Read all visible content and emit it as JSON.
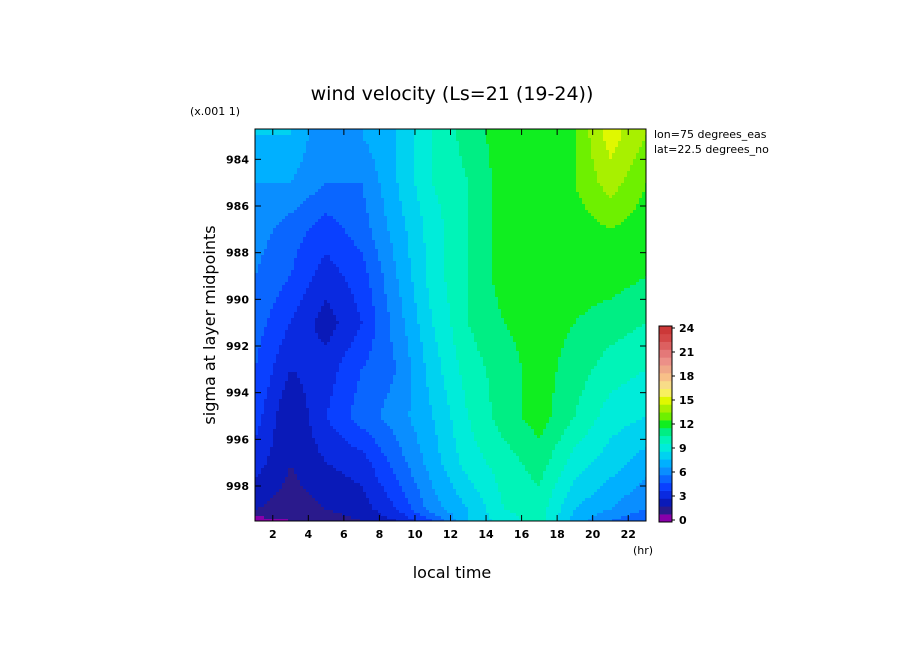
{
  "chart_data": {
    "type": "heatmap",
    "subtype": "filled-contour",
    "title": "wind velocity (Ls=21 (19-24))",
    "xlabel": "local time",
    "ylabel": "sigma at layer midpoints",
    "x_unit": "(hr)",
    "y_scale_note": "(x.001 1)",
    "annotations": [
      "lon=75 degrees_eas",
      "lat=22.5 degrees_no"
    ],
    "xlim": [
      1,
      23
    ],
    "ylim": [
      999.5,
      982.7
    ],
    "x_ticks": [
      "2",
      "4",
      "6",
      "8",
      "10",
      "12",
      "14",
      "16",
      "18",
      "20",
      "22"
    ],
    "y_ticks": [
      "984",
      "986",
      "988",
      "990",
      "992",
      "994",
      "996",
      "998"
    ],
    "x": [
      1,
      3,
      5,
      7,
      9,
      11,
      13,
      15,
      17,
      19,
      21,
      23
    ],
    "y": [
      983,
      985,
      987,
      989,
      991,
      993,
      995,
      997,
      999,
      999.5
    ],
    "z": [
      [
        8,
        8,
        6,
        7,
        8,
        10,
        11.5,
        12.5,
        12.5,
        13,
        15.5,
        14
      ],
      [
        7,
        7,
        6,
        6,
        8,
        10,
        11,
        12.5,
        12.5,
        13,
        14.5,
        13
      ],
      [
        6.5,
        5.5,
        4.5,
        5.5,
        7.5,
        9.5,
        11,
        12.5,
        12.5,
        12.5,
        13,
        12.5
      ],
      [
        6,
        5,
        3.5,
        4.5,
        7,
        9.5,
        11,
        12.5,
        12.5,
        12.5,
        12.5,
        12
      ],
      [
        5.5,
        4,
        2.5,
        4,
        6.5,
        9,
        11,
        12,
        12.5,
        12,
        11.5,
        11
      ],
      [
        5,
        3,
        3.5,
        5,
        6,
        8.5,
        10.5,
        11.5,
        12.5,
        11.5,
        10.5,
        10
      ],
      [
        4.5,
        2,
        4,
        5.5,
        6.5,
        8,
        10,
        11.5,
        12.5,
        11,
        9.5,
        9
      ],
      [
        3.5,
        2,
        3,
        3.5,
        5.5,
        7.5,
        9.5,
        10.5,
        11.5,
        9.5,
        8.5,
        7.5
      ],
      [
        2,
        1.5,
        2,
        2.5,
        4,
        6.5,
        8,
        10,
        10.5,
        8,
        7,
        6
      ],
      [
        0.5,
        1,
        1.5,
        2,
        3,
        5,
        8,
        9.5,
        10.5,
        7.5,
        6,
        5
      ]
    ],
    "levels": [
      0,
      1,
      2,
      3,
      4,
      5,
      6,
      7,
      8,
      9,
      10,
      11,
      12,
      13,
      14,
      15,
      16,
      17,
      18,
      19,
      20,
      21,
      22,
      23,
      24,
      25
    ],
    "level_colors": [
      "#8800aa",
      "#2a1a8c",
      "#0a1ab8",
      "#0a2ae0",
      "#0a40ff",
      "#0a66ff",
      "#0a8eff",
      "#00b0ff",
      "#00d2f0",
      "#00ecda",
      "#00f4b8",
      "#00ee84",
      "#10ee20",
      "#6ef000",
      "#a8f000",
      "#e0f800",
      "#f8f060",
      "#f8dc88",
      "#f8c088",
      "#f0a888",
      "#ec9088",
      "#e47878",
      "#dc6060",
      "#d44848",
      "#cc3838"
    ],
    "colorbar_ticks": [
      "0",
      "3",
      "6",
      "9",
      "12",
      "15",
      "18",
      "21",
      "24"
    ]
  }
}
